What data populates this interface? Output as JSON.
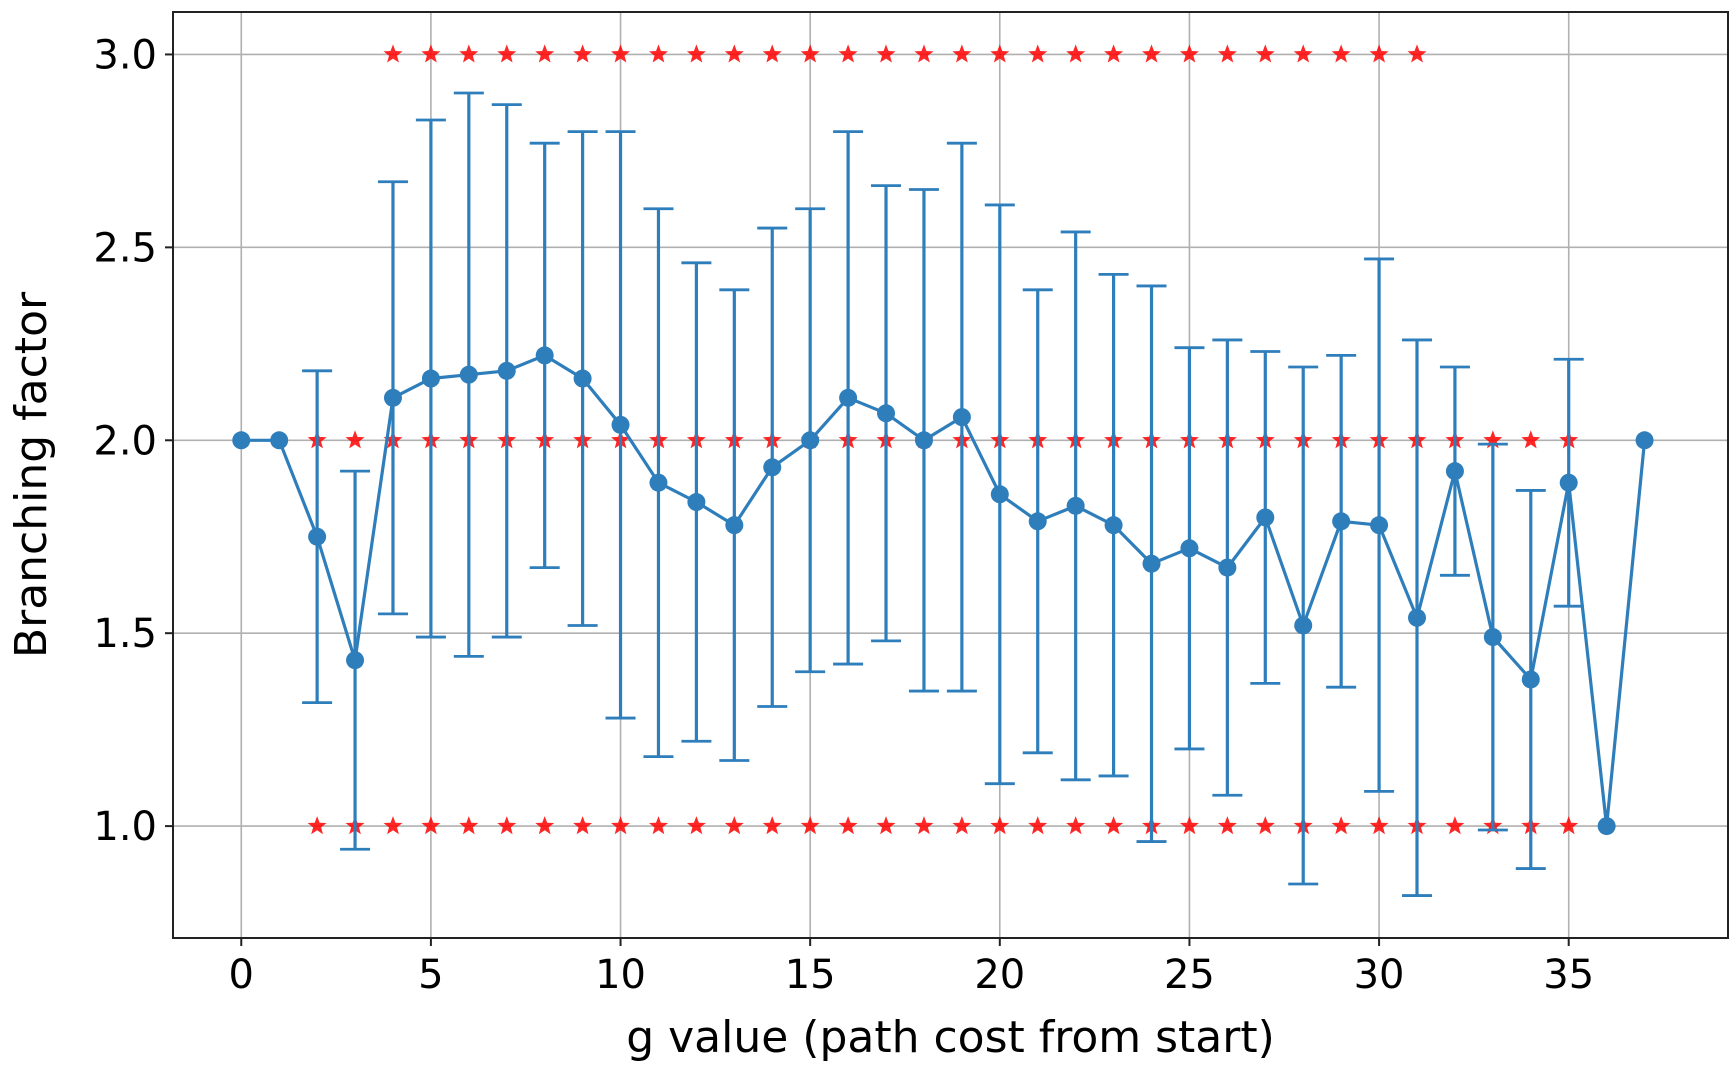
{
  "chart_data": {
    "type": "line",
    "title": "",
    "xlabel": "g value (path cost from start)",
    "ylabel": "Branching factor",
    "xlim": [
      -1.8,
      39.2
    ],
    "ylim": [
      0.71,
      3.11
    ],
    "xticks": [
      0,
      5,
      10,
      15,
      20,
      25,
      30,
      35
    ],
    "yticks": [
      1.0,
      1.5,
      2.0,
      2.5,
      3.0
    ],
    "xtick_labels": [
      "0",
      "5",
      "10",
      "15",
      "20",
      "25",
      "30",
      "35"
    ],
    "ytick_labels": [
      "1.0",
      "1.5",
      "2.0",
      "2.5",
      "3.0"
    ],
    "grid": true,
    "legend": "none",
    "colors": {
      "mean_series": "#2e7ebc",
      "observed_values": "#ff0000"
    },
    "series": [
      {
        "marker": "circle",
        "x": [
          0,
          1,
          2,
          3,
          4,
          5,
          6,
          7,
          8,
          9,
          10,
          11,
          12,
          13,
          14,
          15,
          16,
          17,
          18,
          19,
          20,
          21,
          22,
          23,
          24,
          25,
          26,
          27,
          28,
          29,
          30,
          31,
          32,
          33,
          34,
          35,
          36,
          37
        ],
        "y": [
          2.0,
          2.0,
          1.75,
          1.43,
          2.11,
          2.16,
          2.17,
          2.18,
          2.22,
          2.16,
          2.04,
          1.89,
          1.84,
          1.78,
          1.93,
          2.0,
          2.11,
          2.07,
          2.0,
          2.06,
          1.86,
          1.79,
          1.83,
          1.78,
          1.68,
          1.72,
          1.67,
          1.8,
          1.52,
          1.79,
          1.78,
          1.54,
          1.92,
          1.49,
          1.38,
          1.89,
          1.0,
          2.0
        ],
        "y_err": [
          0,
          0,
          0.43,
          0.49,
          0.56,
          0.67,
          0.73,
          0.69,
          0.55,
          0.64,
          0.76,
          0.71,
          0.62,
          0.61,
          0.62,
          0.6,
          0.69,
          0.59,
          0.65,
          0.71,
          0.75,
          0.6,
          0.71,
          0.65,
          0.72,
          0.52,
          0.59,
          0.43,
          0.67,
          0.43,
          0.69,
          0.72,
          0.27,
          0.5,
          0.49,
          0.32,
          0,
          0
        ]
      },
      {
        "marker": "star",
        "x": [
          4,
          5,
          6,
          7,
          8,
          9,
          10,
          11,
          12,
          13,
          14,
          15,
          16,
          17,
          18,
          19,
          20,
          21,
          22,
          23,
          24,
          25,
          26,
          27,
          28,
          29,
          30,
          31
        ],
        "y": [
          3,
          3,
          3,
          3,
          3,
          3,
          3,
          3,
          3,
          3,
          3,
          3,
          3,
          3,
          3,
          3,
          3,
          3,
          3,
          3,
          3,
          3,
          3,
          3,
          3,
          3,
          3,
          3
        ]
      },
      {
        "marker": "star",
        "x": [
          2,
          3,
          4,
          5,
          6,
          7,
          8,
          9,
          10,
          11,
          12,
          13,
          14,
          15,
          16,
          17,
          18,
          19,
          20,
          21,
          22,
          23,
          24,
          25,
          26,
          27,
          28,
          29,
          30,
          31,
          32,
          33,
          34,
          35
        ],
        "y": [
          2,
          2,
          2,
          2,
          2,
          2,
          2,
          2,
          2,
          2,
          2,
          2,
          2,
          2,
          2,
          2,
          2,
          2,
          2,
          2,
          2,
          2,
          2,
          2,
          2,
          2,
          2,
          2,
          2,
          2,
          2,
          2,
          2,
          2
        ]
      },
      {
        "marker": "star",
        "x": [
          2,
          3,
          4,
          5,
          6,
          7,
          8,
          9,
          10,
          11,
          12,
          13,
          14,
          15,
          16,
          17,
          18,
          19,
          20,
          21,
          22,
          23,
          24,
          25,
          26,
          27,
          28,
          29,
          30,
          31,
          32,
          33,
          34,
          35
        ],
        "y": [
          1,
          1,
          1,
          1,
          1,
          1,
          1,
          1,
          1,
          1,
          1,
          1,
          1,
          1,
          1,
          1,
          1,
          1,
          1,
          1,
          1,
          1,
          1,
          1,
          1,
          1,
          1,
          1,
          1,
          1,
          1,
          1,
          1,
          1
        ]
      }
    ]
  }
}
